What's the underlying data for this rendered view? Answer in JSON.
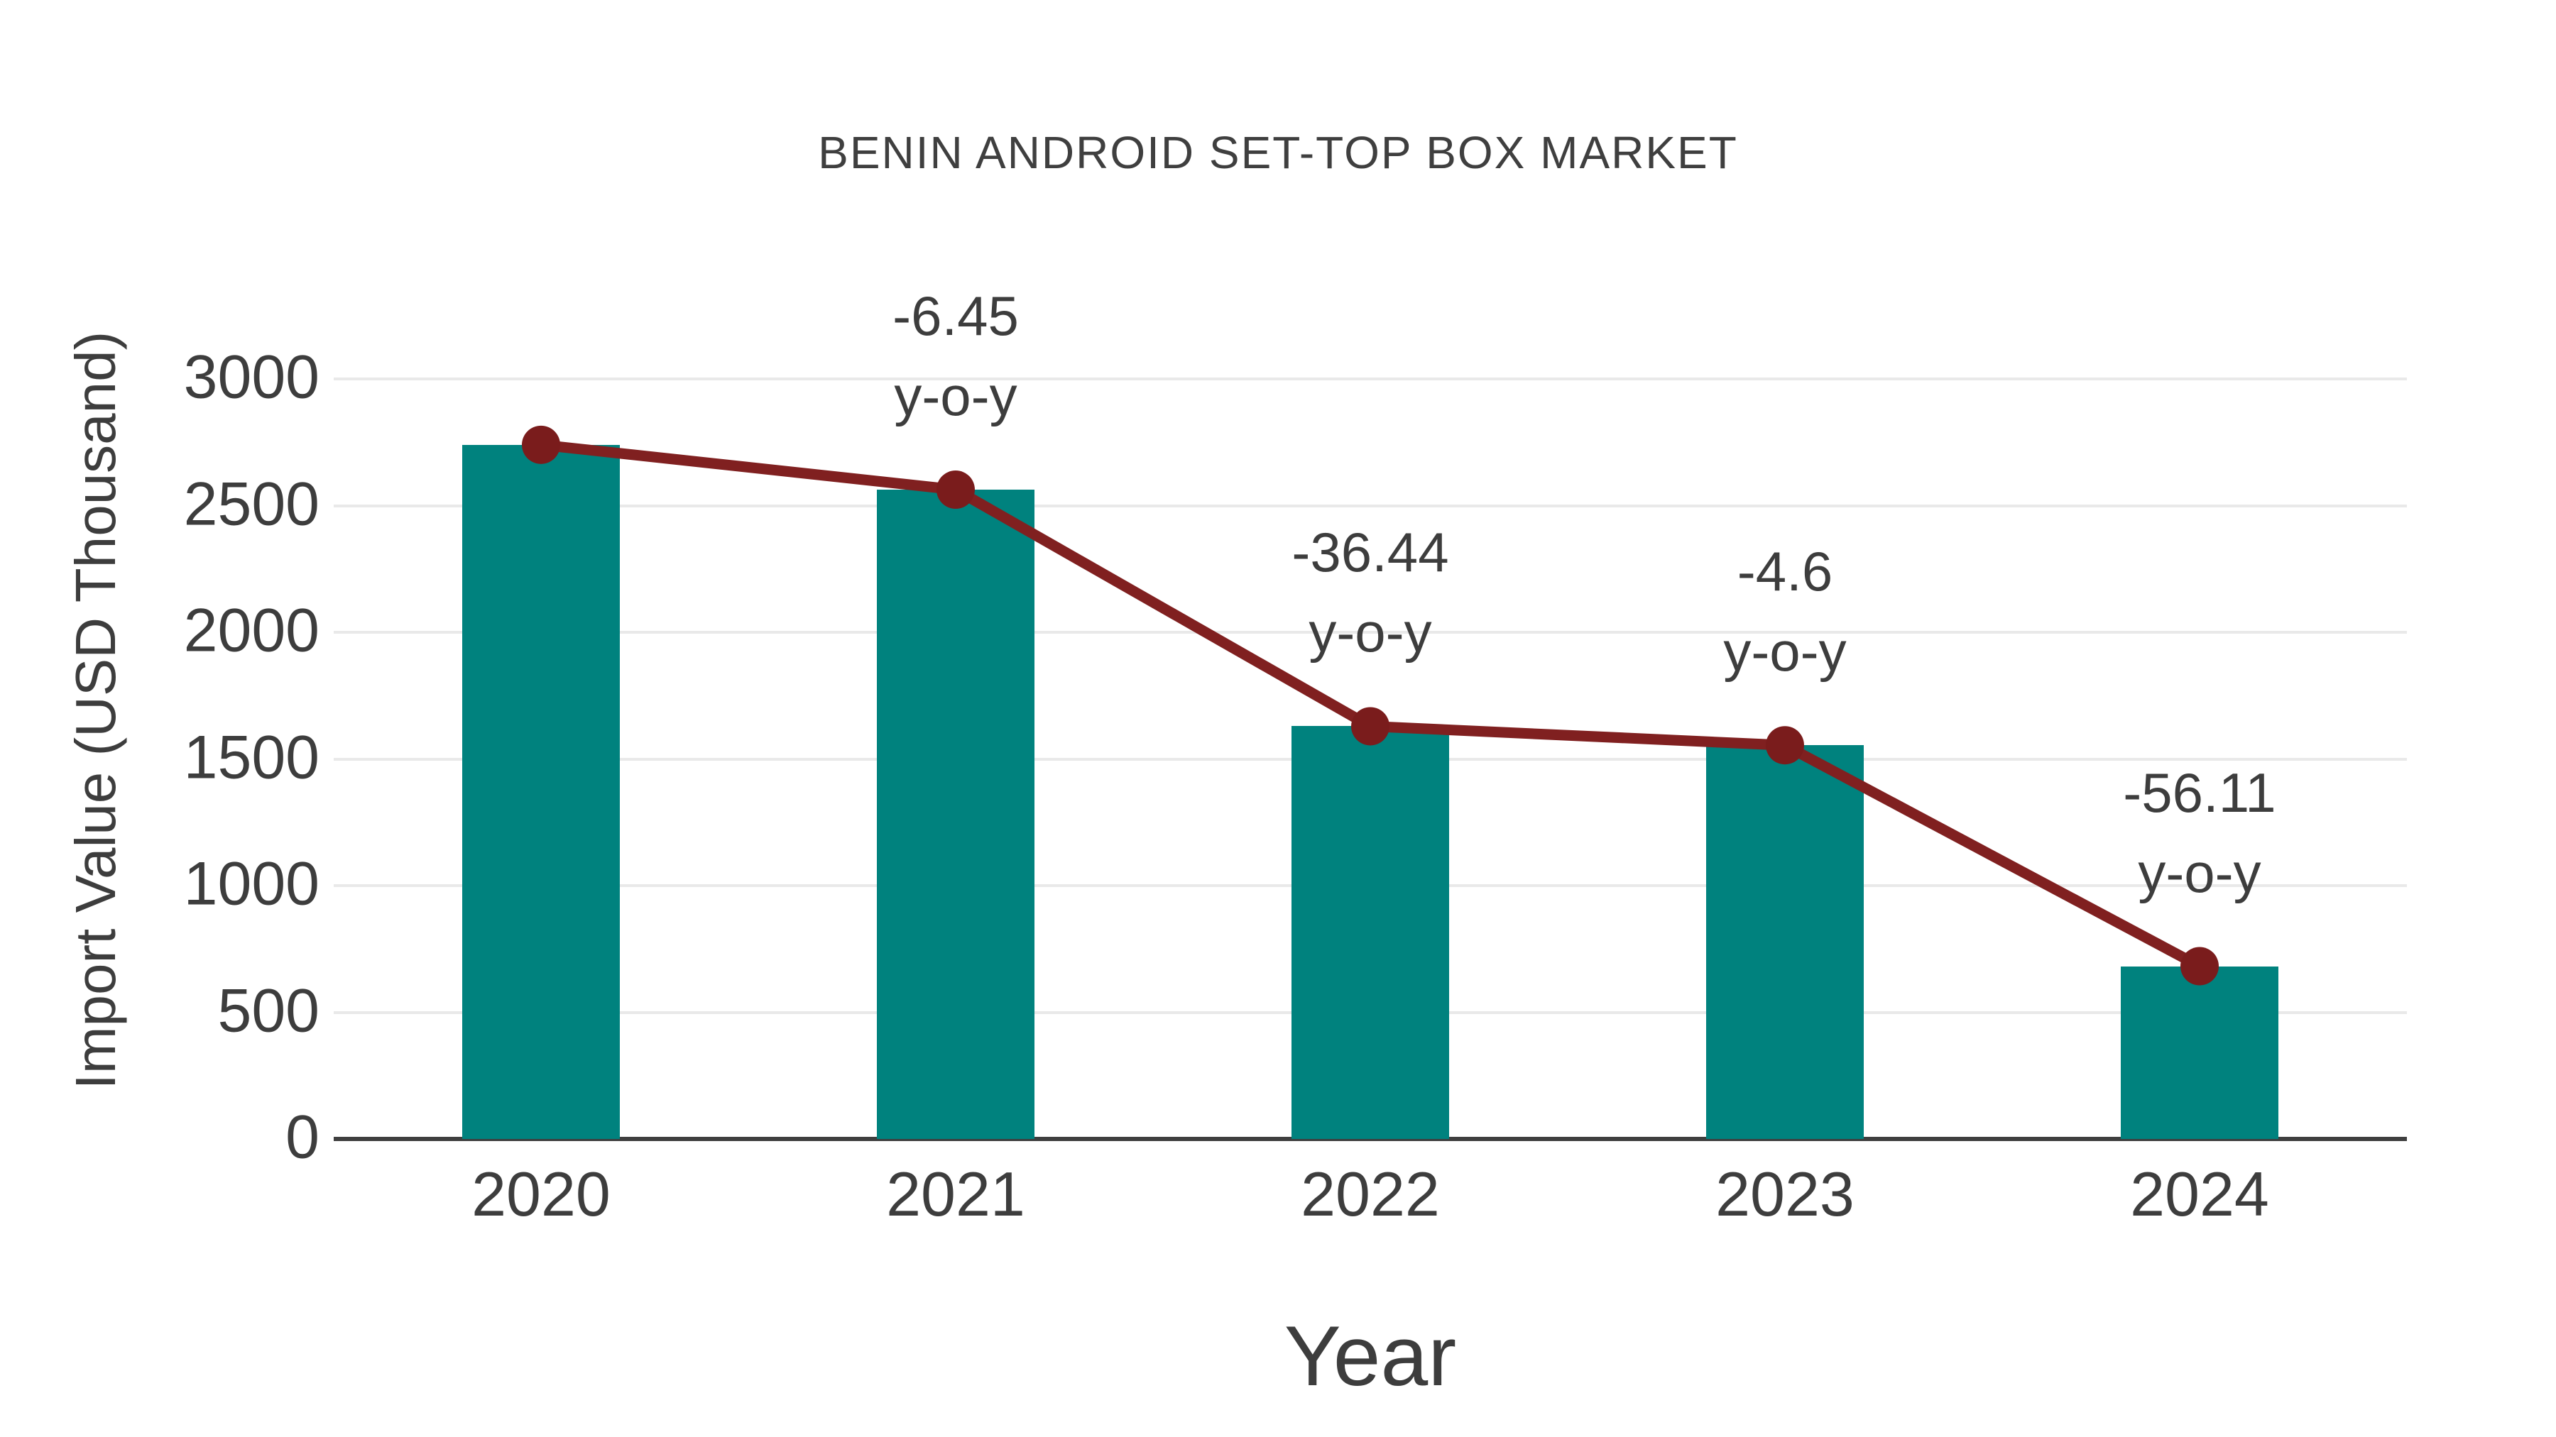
{
  "page": {
    "background": "#ffffff"
  },
  "chart_data": {
    "type": "bar",
    "title": "BENIN ANDROID SET-TOP BOX MARKET",
    "xlabel": "Year",
    "ylabel": "Import Value (USD Thousand)",
    "categories": [
      "2020",
      "2021",
      "2022",
      "2023",
      "2024"
    ],
    "series": [
      {
        "name": "Import Value (USD Thousand)",
        "type": "bar",
        "values": [
          2740,
          2563,
          1629,
          1554,
          682
        ],
        "color": "#00827e"
      },
      {
        "name": "Year-over-year trend line",
        "type": "line",
        "values": [
          2740,
          2563,
          1629,
          1554,
          682
        ],
        "color": "#802020",
        "marker_color": "#7a1c1c"
      }
    ],
    "annotations": [
      {
        "category": "2021",
        "line1": "-6.45",
        "line2": "y-o-y"
      },
      {
        "category": "2022",
        "line1": "-36.44",
        "line2": "y-o-y"
      },
      {
        "category": "2023",
        "line1": "-4.6",
        "line2": "y-o-y"
      },
      {
        "category": "2024",
        "line1": "-56.11",
        "line2": "y-o-y"
      }
    ],
    "yticks": [
      0,
      500,
      1000,
      1500,
      2000,
      2500,
      3000
    ],
    "ylim": [
      0,
      3000
    ],
    "grid": "horizontal",
    "legend": "none",
    "text_color": "#3d3d3d",
    "grid_color": "#e9e9e9",
    "axis_color": "#3f3f3f",
    "background_color": "#ffffff"
  }
}
